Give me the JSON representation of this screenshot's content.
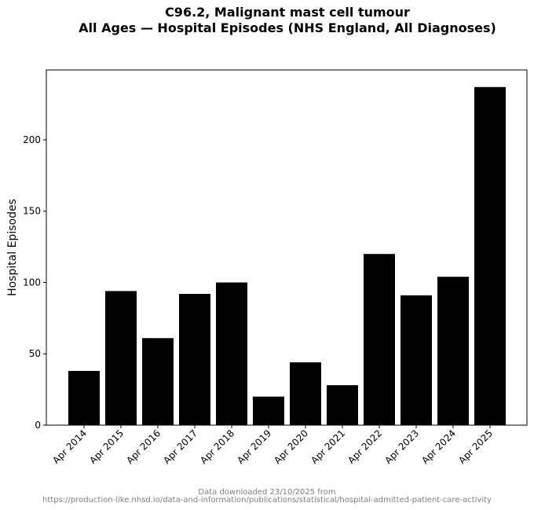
{
  "chart_data": {
    "type": "bar",
    "title_line1": "C96.2, Malignant mast cell tumour",
    "title_line2": "All Ages — Hospital Episodes (NHS England, All Diagnoses)",
    "xlabel": "",
    "ylabel": "Hospital Episodes",
    "categories": [
      "Apr 2014",
      "Apr 2015",
      "Apr 2016",
      "Apr 2017",
      "Apr 2018",
      "Apr 2019",
      "Apr 2020",
      "Apr 2021",
      "Apr 2022",
      "Apr 2023",
      "Apr 2024",
      "Apr 2025"
    ],
    "values": [
      38,
      94,
      61,
      92,
      100,
      20,
      44,
      28,
      120,
      91,
      104,
      237
    ],
    "ylim": [
      0,
      249
    ],
    "yticks": [
      0,
      50,
      100,
      150,
      200
    ],
    "grid": false,
    "bar_color": "#000000"
  },
  "footer": {
    "line1": "Data downloaded 23/10/2025 from",
    "line2": "https://production-like.nhsd.io/data-and-information/publications/statistical/hospital-admitted-patient-care-activity",
    "color": "#808080"
  }
}
